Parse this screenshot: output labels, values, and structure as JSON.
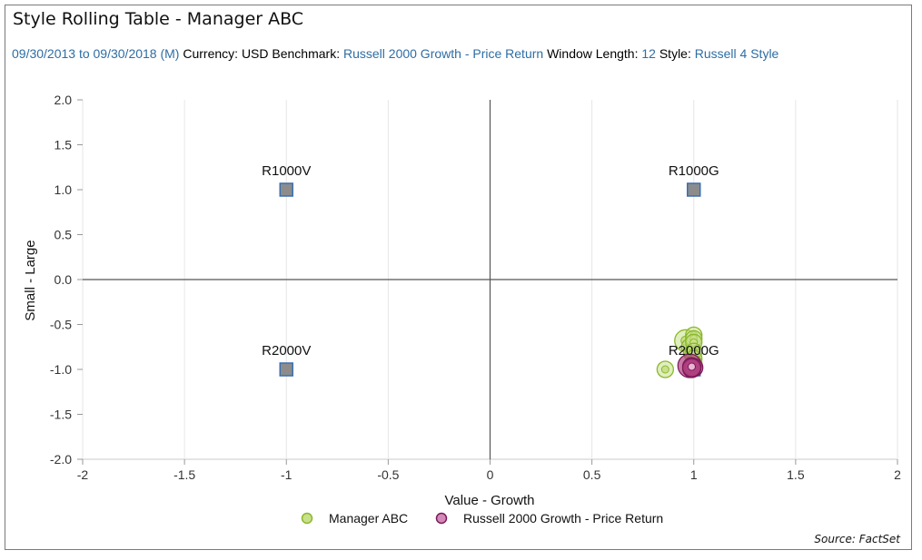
{
  "header": {
    "title": "Style Rolling Table - Manager ABC",
    "date_range": "09/30/2013 to 09/30/2018 (M)",
    "currency_label": "Currency:",
    "currency_value": "USD",
    "benchmark_label": "Benchmark:",
    "benchmark_value": "Russell 2000 Growth - Price Return",
    "window_label": "Window Length:",
    "window_value": "12",
    "style_label": "Style:",
    "style_value": "Russell 4 Style"
  },
  "footer": {
    "source": "Source: FactSet"
  },
  "colors": {
    "manager_fill": "#c9e08a",
    "manager_stroke": "#8ab82c",
    "benchmark_fill": "#b0407f",
    "benchmark_stroke": "#7a1a5a",
    "style_box_fill": "#8c8c8c",
    "style_box_stroke": "#3a6fb0",
    "link": "#2e6da4"
  },
  "chart_data": {
    "type": "scatter",
    "xlabel": "Value - Growth",
    "ylabel": "Small - Large",
    "xlim": [
      -2,
      2
    ],
    "ylim": [
      -2,
      2
    ],
    "x_ticks": [
      "-2",
      "-1.5",
      "-1",
      "-0.5",
      "0",
      "0.5",
      "1",
      "1.5",
      "2"
    ],
    "y_ticks": [
      "2.0",
      "1.5",
      "1.0",
      "0.5",
      "0.0",
      "-0.5",
      "-1.0",
      "-1.5",
      "-2.0"
    ],
    "x_tick_values": [
      -2,
      -1.5,
      -1,
      -0.5,
      0,
      0.5,
      1,
      1.5,
      2
    ],
    "y_tick_values": [
      2,
      1.5,
      1,
      0.5,
      0,
      -0.5,
      -1,
      -1.5,
      -2
    ],
    "grid": "vertical lines at x ticks",
    "legend_position": "bottom-center",
    "style_indices": [
      {
        "name": "R1000V",
        "x": -1,
        "y": 1
      },
      {
        "name": "R1000G",
        "x": 1,
        "y": 1
      },
      {
        "name": "R2000V",
        "x": -1,
        "y": -1
      },
      {
        "name": "R2000G",
        "x": 1,
        "y": -1
      }
    ],
    "series": [
      {
        "name": "Manager ABC",
        "points": [
          {
            "x": 0.86,
            "y": -1.0
          },
          {
            "x": 0.96,
            "y": -0.68
          },
          {
            "x": 0.98,
            "y": -0.75
          },
          {
            "x": 0.99,
            "y": -0.82
          },
          {
            "x": 1.0,
            "y": -0.62
          },
          {
            "x": 1.0,
            "y": -0.66
          },
          {
            "x": 1.0,
            "y": -0.7
          },
          {
            "x": 1.0,
            "y": -0.8
          },
          {
            "x": 1.0,
            "y": -0.88
          },
          {
            "x": 1.0,
            "y": -0.93
          },
          {
            "x": 0.99,
            "y": -0.96
          }
        ]
      },
      {
        "name": "Russell 2000 Growth - Price Return",
        "points": [
          {
            "x": 0.98,
            "y": -0.96
          },
          {
            "x": 0.99,
            "y": -0.97
          },
          {
            "x": 1.0,
            "y": -0.98
          },
          {
            "x": 0.99,
            "y": -0.99
          },
          {
            "x": 0.99,
            "y": -0.98
          }
        ]
      }
    ]
  }
}
